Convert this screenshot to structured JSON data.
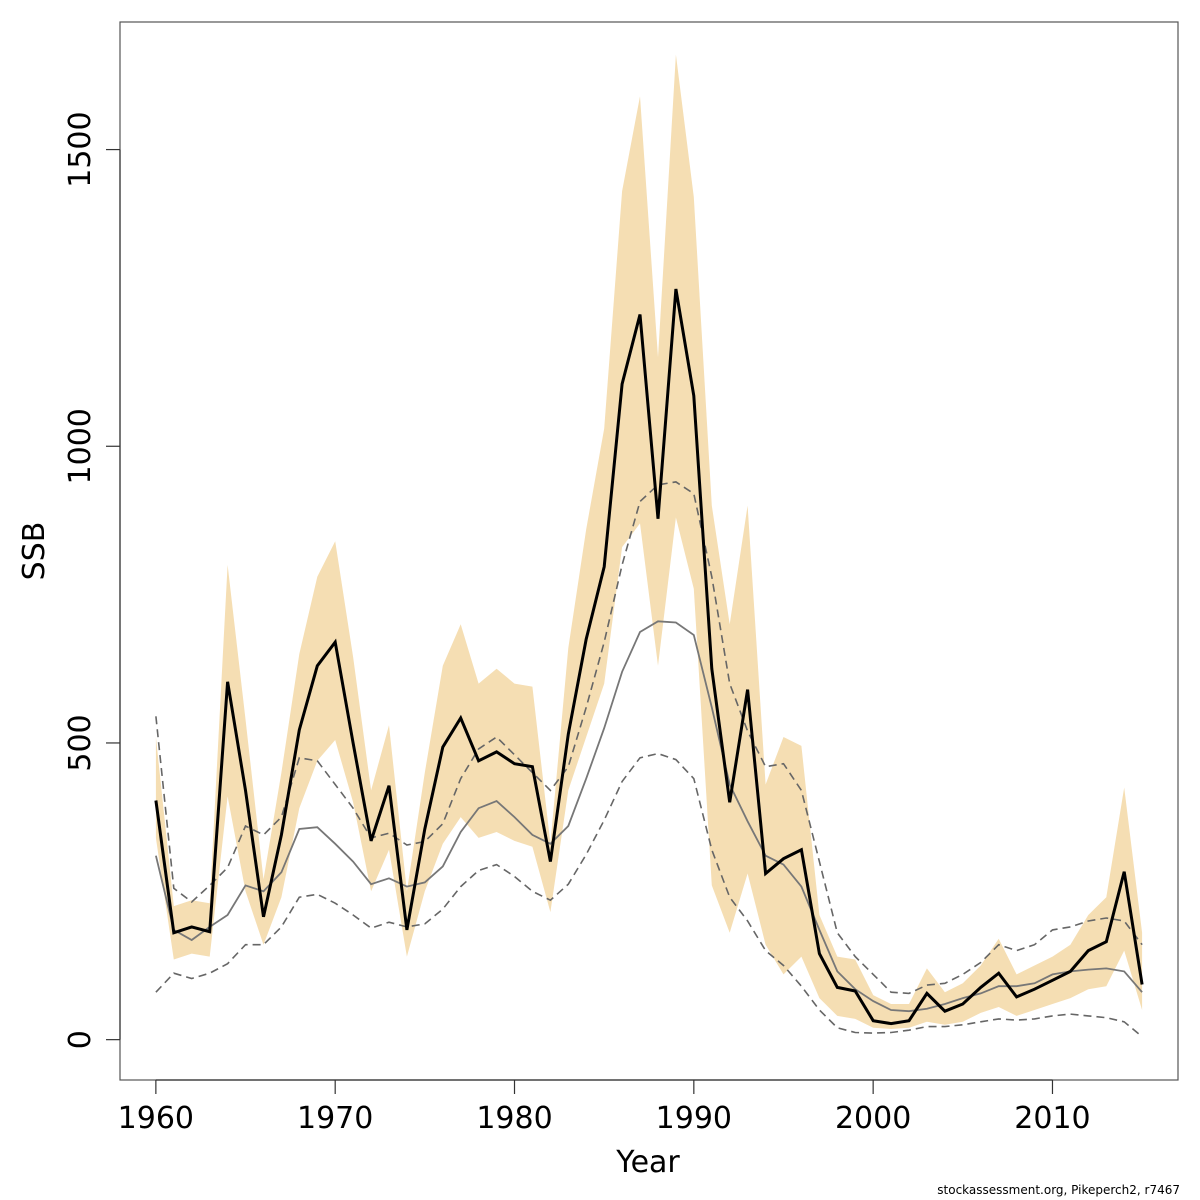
{
  "chart_data": {
    "type": "line",
    "title": "",
    "xlabel": "Year",
    "ylabel": "SSB",
    "xlim": [
      1958,
      2017
    ],
    "ylim": [
      -68,
      1715
    ],
    "x_ticks": [
      1960,
      1970,
      1980,
      1990,
      2000,
      2010
    ],
    "y_ticks": [
      0,
      500,
      1000,
      1500
    ],
    "grid": false,
    "legend": "none",
    "colors": {
      "band": "#f5deb3",
      "estimate": "#000000",
      "reference": "#777777",
      "reference_bounds": "#666666"
    },
    "x": [
      1960,
      1961,
      1962,
      1963,
      1964,
      1965,
      1966,
      1967,
      1968,
      1969,
      1970,
      1971,
      1972,
      1973,
      1974,
      1975,
      1976,
      1977,
      1978,
      1979,
      1980,
      1981,
      1982,
      1983,
      1984,
      1985,
      1986,
      1987,
      1988,
      1989,
      1990,
      1991,
      1992,
      1993,
      1994,
      1995,
      1996,
      1997,
      1998,
      1999,
      2000,
      2001,
      2002,
      2003,
      2004,
      2005,
      2006,
      2007,
      2008,
      2009,
      2010,
      2011,
      2012,
      2013,
      2014,
      2015
    ],
    "band": {
      "upper": [
        510,
        225,
        235,
        230,
        800,
        540,
        270,
        450,
        650,
        780,
        840,
        645,
        420,
        530,
        250,
        450,
        630,
        700,
        600,
        625,
        600,
        595,
        330,
        660,
        860,
        1030,
        1430,
        1590,
        1150,
        1660,
        1420,
        900,
        700,
        900,
        430,
        510,
        495,
        210,
        140,
        135,
        75,
        60,
        60,
        120,
        80,
        95,
        125,
        170,
        110,
        125,
        140,
        160,
        210,
        240,
        425,
        180
      ],
      "lower": [
        340,
        135,
        145,
        140,
        410,
        250,
        160,
        240,
        390,
        470,
        505,
        400,
        250,
        320,
        140,
        250,
        330,
        375,
        340,
        350,
        335,
        325,
        215,
        420,
        510,
        600,
        830,
        870,
        630,
        880,
        760,
        260,
        180,
        280,
        160,
        110,
        140,
        70,
        40,
        35,
        20,
        18,
        20,
        30,
        25,
        30,
        45,
        55,
        40,
        50,
        60,
        70,
        85,
        90,
        150,
        50
      ]
    },
    "series": [
      {
        "values": [
          403,
          180,
          190,
          182,
          603,
          420,
          207,
          345,
          522,
          630,
          670,
          500,
          335,
          428,
          185,
          355,
          493,
          542,
          470,
          485,
          465,
          460,
          300,
          515,
          675,
          797,
          1105,
          1222,
          878,
          1265,
          1085,
          625,
          400,
          590,
          280,
          305,
          320,
          145,
          88,
          82,
          32,
          27,
          32,
          78,
          48,
          60,
          88,
          112,
          72,
          85,
          100,
          115,
          150,
          165,
          283,
          93
        ]
      },
      {
        "values": [
          310,
          185,
          168,
          190,
          210,
          260,
          250,
          282,
          355,
          358,
          330,
          300,
          262,
          272,
          258,
          265,
          292,
          350,
          390,
          402,
          375,
          345,
          330,
          360,
          440,
          525,
          620,
          687,
          705,
          703,
          682,
          560,
          430,
          368,
          310,
          295,
          258,
          185,
          115,
          85,
          65,
          50,
          48,
          52,
          60,
          70,
          78,
          90,
          90,
          95,
          110,
          115,
          118,
          120,
          115,
          80
        ]
      },
      {
        "values": [
          545,
          255,
          232,
          260,
          290,
          360,
          345,
          375,
          475,
          470,
          430,
          390,
          340,
          348,
          328,
          334,
          364,
          440,
          490,
          510,
          480,
          450,
          420,
          460,
          560,
          670,
          800,
          907,
          935,
          940,
          920,
          780,
          600,
          520,
          460,
          465,
          420,
          300,
          180,
          140,
          110,
          80,
          78,
          92,
          95,
          110,
          130,
          160,
          150,
          160,
          185,
          190,
          200,
          205,
          200,
          160
        ]
      },
      {
        "values": [
          80,
          112,
          103,
          112,
          128,
          160,
          160,
          190,
          240,
          245,
          230,
          210,
          188,
          198,
          190,
          195,
          220,
          258,
          285,
          295,
          275,
          250,
          235,
          262,
          312,
          370,
          435,
          475,
          482,
          472,
          440,
          320,
          240,
          200,
          150,
          125,
          90,
          50,
          20,
          12,
          11,
          12,
          16,
          22,
          22,
          25,
          30,
          35,
          33,
          35,
          40,
          43,
          40,
          37,
          30,
          5
        ]
      }
    ],
    "footer": "stockassessment.org, Pikeperch2, r7467"
  }
}
